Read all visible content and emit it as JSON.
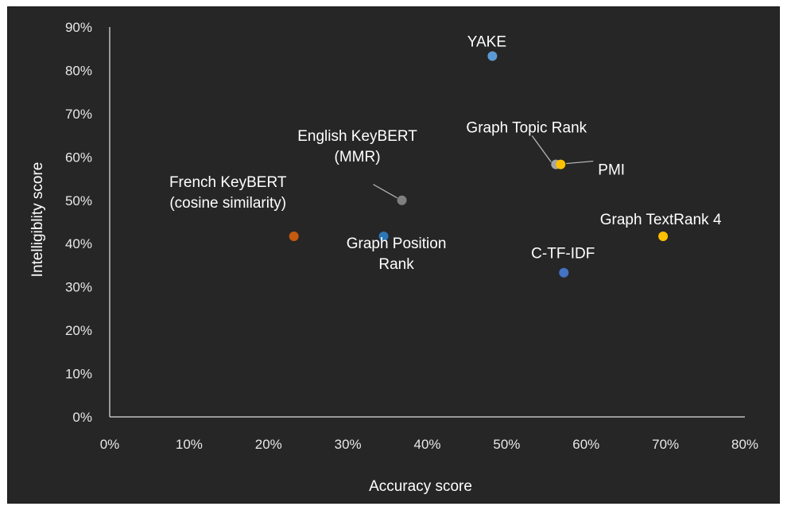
{
  "chart_data": {
    "type": "scatter",
    "xlabel": "Accuracy score",
    "ylabel": "Intelligiblity score",
    "xlim": [
      0,
      80
    ],
    "ylim": [
      0,
      90
    ],
    "x_ticks": [
      "0%",
      "10%",
      "20%",
      "30%",
      "40%",
      "50%",
      "60%",
      "70%",
      "80%"
    ],
    "y_ticks": [
      "0%",
      "10%",
      "20%",
      "30%",
      "40%",
      "50%",
      "60%",
      "70%",
      "80%",
      "90%"
    ],
    "grid": false,
    "legend": "none",
    "points": [
      {
        "label": [
          "YAKE"
        ],
        "x": 48.2,
        "y": 83.3,
        "color": "#5b9bd5"
      },
      {
        "label": [
          "Graph Topic Rank"
        ],
        "x": 56.2,
        "y": 58.3,
        "color": "#a5a5a5"
      },
      {
        "label": [
          "PMI"
        ],
        "x": 56.8,
        "y": 58.3,
        "color": "#ffc000"
      },
      {
        "label": [
          "English KeyBERT",
          "(MMR)"
        ],
        "x": 36.8,
        "y": 50.0,
        "color": "#7f7f7f"
      },
      {
        "label": [
          "French KeyBERT",
          "(cosine similarity)"
        ],
        "x": 23.2,
        "y": 41.7,
        "color": "#c55a11"
      },
      {
        "label": [
          "Graph Position",
          "Rank"
        ],
        "x": 34.5,
        "y": 41.7,
        "color": "#2e75b6"
      },
      {
        "label": [
          "Graph TextRank 4"
        ],
        "x": 69.7,
        "y": 41.7,
        "color": "#ffc000"
      },
      {
        "label": [
          "C-TF-IDF"
        ],
        "x": 57.2,
        "y": 33.3,
        "color": "#4472c4"
      }
    ]
  }
}
